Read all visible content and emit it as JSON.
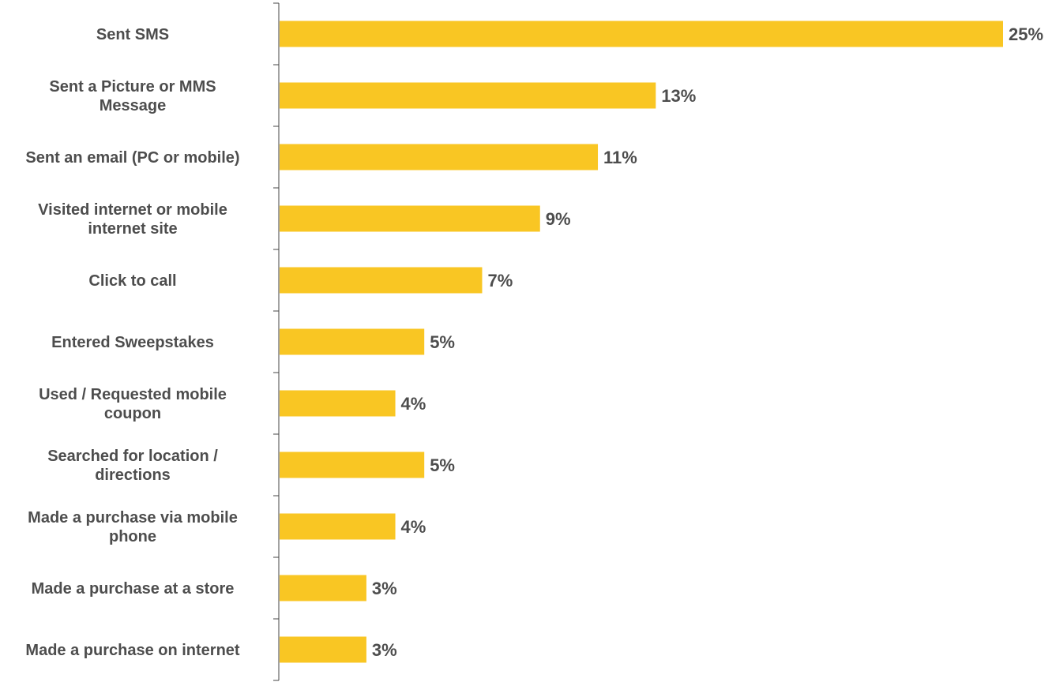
{
  "chart_data": {
    "type": "bar",
    "orientation": "horizontal",
    "categories": [
      "Sent SMS",
      "Sent a Picture or MMS Message",
      "Sent an email (PC or mobile)",
      "Visited internet or mobile internet site",
      "Click to call",
      "Entered Sweepstakes",
      "Used / Requested mobile coupon",
      "Searched for location / directions",
      "Made a purchase via mobile phone",
      "Made a purchase at a store",
      "Made a purchase on internet"
    ],
    "category_lines": [
      [
        "Sent SMS"
      ],
      [
        "Sent a Picture or MMS",
        "Message"
      ],
      [
        "Sent an email (PC or mobile)"
      ],
      [
        "Visited internet or mobile",
        "internet site"
      ],
      [
        "Click to call"
      ],
      [
        "Entered Sweepstakes"
      ],
      [
        "Used / Requested mobile",
        "coupon"
      ],
      [
        "Searched for location /",
        "directions"
      ],
      [
        "Made a purchase via mobile",
        "phone"
      ],
      [
        "Made a purchase at a store"
      ],
      [
        "Made a purchase on internet"
      ]
    ],
    "values": [
      25,
      13,
      11,
      9,
      7,
      5,
      4,
      5,
      4,
      3,
      3
    ],
    "value_labels": [
      "25%",
      "13%",
      "11%",
      "9%",
      "7%",
      "5%",
      "4%",
      "5%",
      "4%",
      "3%",
      "3%"
    ],
    "xlim": [
      0,
      25
    ],
    "grid": false,
    "legend": "none",
    "bar_color": "#f9c623",
    "axis_color": "#444444",
    "text_color": "#4d4d4d"
  }
}
